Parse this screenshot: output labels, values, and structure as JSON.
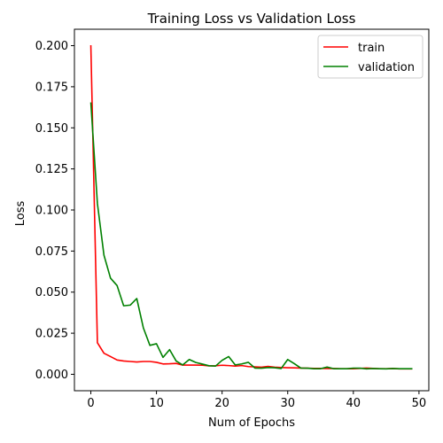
{
  "chart_data": {
    "type": "line",
    "title": "Training Loss vs Validation Loss",
    "xlabel": "Num of Epochs",
    "ylabel": "Loss",
    "xlim": [
      -2.5,
      51.5
    ],
    "ylim": [
      -0.01,
      0.21
    ],
    "xticks": [
      0,
      10,
      20,
      30,
      40,
      50
    ],
    "yticks": [
      0.0,
      0.025,
      0.05,
      0.075,
      0.1,
      0.125,
      0.15,
      0.175,
      0.2
    ],
    "ytick_labels": [
      "0.000",
      "0.025",
      "0.050",
      "0.075",
      "0.100",
      "0.125",
      "0.150",
      "0.175",
      "0.200"
    ],
    "grid": false,
    "legend_position": "top-right",
    "x": [
      0,
      1,
      2,
      3,
      4,
      5,
      6,
      7,
      8,
      9,
      10,
      11,
      12,
      13,
      14,
      15,
      16,
      17,
      18,
      19,
      20,
      21,
      22,
      23,
      24,
      25,
      26,
      27,
      28,
      29,
      30,
      31,
      32,
      33,
      34,
      35,
      36,
      37,
      38,
      39,
      40,
      41,
      42,
      43,
      44,
      45,
      46,
      47,
      48,
      49
    ],
    "series": [
      {
        "name": "train",
        "color": "#ff0000",
        "values": [
          0.2003,
          0.0192,
          0.0128,
          0.0108,
          0.0087,
          0.0081,
          0.0078,
          0.0075,
          0.0078,
          0.0078,
          0.0073,
          0.0063,
          0.0064,
          0.0066,
          0.0056,
          0.0056,
          0.0056,
          0.0055,
          0.0051,
          0.0052,
          0.0055,
          0.0053,
          0.005,
          0.0053,
          0.0047,
          0.0045,
          0.0043,
          0.0048,
          0.0043,
          0.0041,
          0.004,
          0.0039,
          0.0038,
          0.0037,
          0.0036,
          0.0036,
          0.0035,
          0.0035,
          0.0034,
          0.0034,
          0.0034,
          0.0036,
          0.0038,
          0.0036,
          0.0034,
          0.0034,
          0.0035,
          0.0033,
          0.0033,
          0.0033
        ]
      },
      {
        "name": "validation",
        "color": "#008000",
        "values": [
          0.1655,
          0.104,
          0.0725,
          0.0585,
          0.054,
          0.0417,
          0.0421,
          0.0461,
          0.0283,
          0.0176,
          0.0186,
          0.0103,
          0.015,
          0.0081,
          0.0057,
          0.009,
          0.0072,
          0.0062,
          0.0052,
          0.005,
          0.0085,
          0.0108,
          0.0057,
          0.0063,
          0.0073,
          0.0038,
          0.0037,
          0.0041,
          0.004,
          0.0035,
          0.009,
          0.0065,
          0.0038,
          0.0037,
          0.0034,
          0.0034,
          0.0044,
          0.0034,
          0.0034,
          0.0034,
          0.0037,
          0.0037,
          0.0033,
          0.0035,
          0.0034,
          0.0033,
          0.0035,
          0.0034,
          0.0034,
          0.0034
        ]
      }
    ]
  }
}
